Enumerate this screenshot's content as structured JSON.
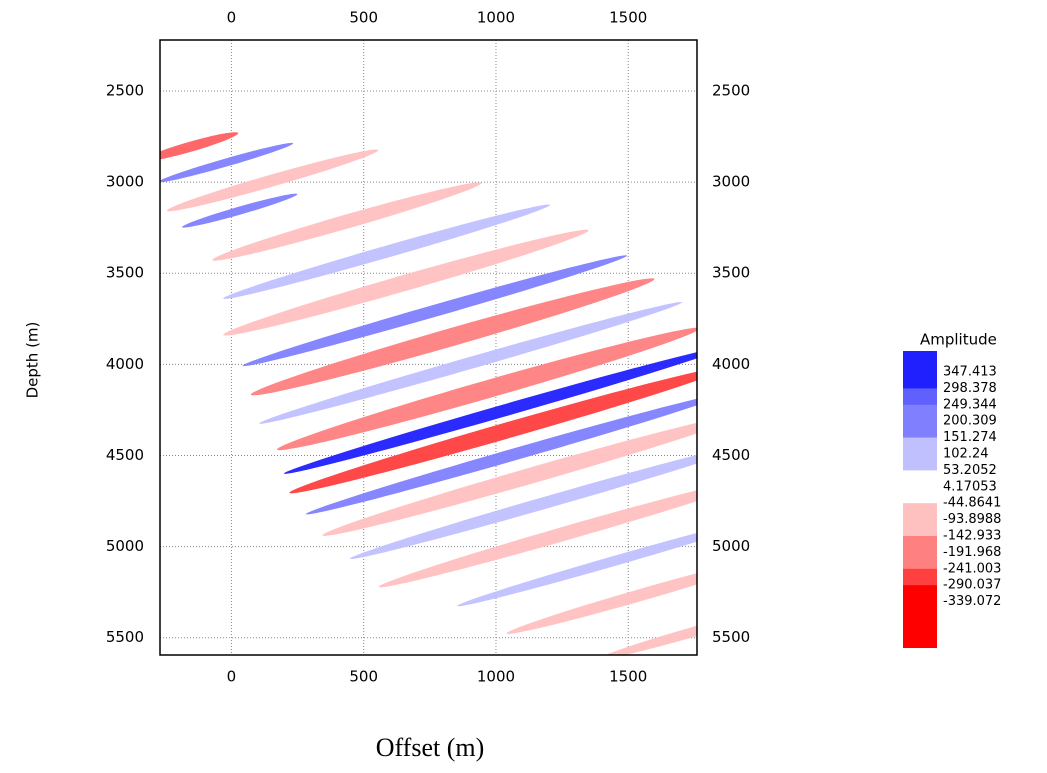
{
  "chart_data": {
    "type": "seismic-image",
    "x_label": "Offset (m)",
    "y_label": "Depth (m)",
    "xlim": [
      -270,
      1760
    ],
    "xticks": [
      0,
      500,
      1000,
      1500
    ],
    "ylim": [
      2220,
      5595
    ],
    "yticks": [
      2500,
      3000,
      3500,
      4000,
      4500,
      5000,
      5500
    ],
    "y_inverted": true,
    "grid": true,
    "colorbar": {
      "title": "Amplitude",
      "levels": [
        347.413,
        298.378,
        249.344,
        200.309,
        151.274,
        102.24,
        53.2052,
        4.17053,
        -44.8641,
        -93.8988,
        -142.933,
        -191.968,
        -241.003,
        -290.037,
        -339.072
      ],
      "colors": [
        "#2020ff",
        "#6060ff",
        "#8080ff",
        "#8080ff",
        "#c0c0ff",
        "#c0c0ff",
        "#ffffff",
        "#ffffff",
        "#ffc0c0",
        "#ffc0c0",
        "#ff8080",
        "#ff8080",
        "#ff4040",
        "#ff0000"
      ]
    }
  }
}
